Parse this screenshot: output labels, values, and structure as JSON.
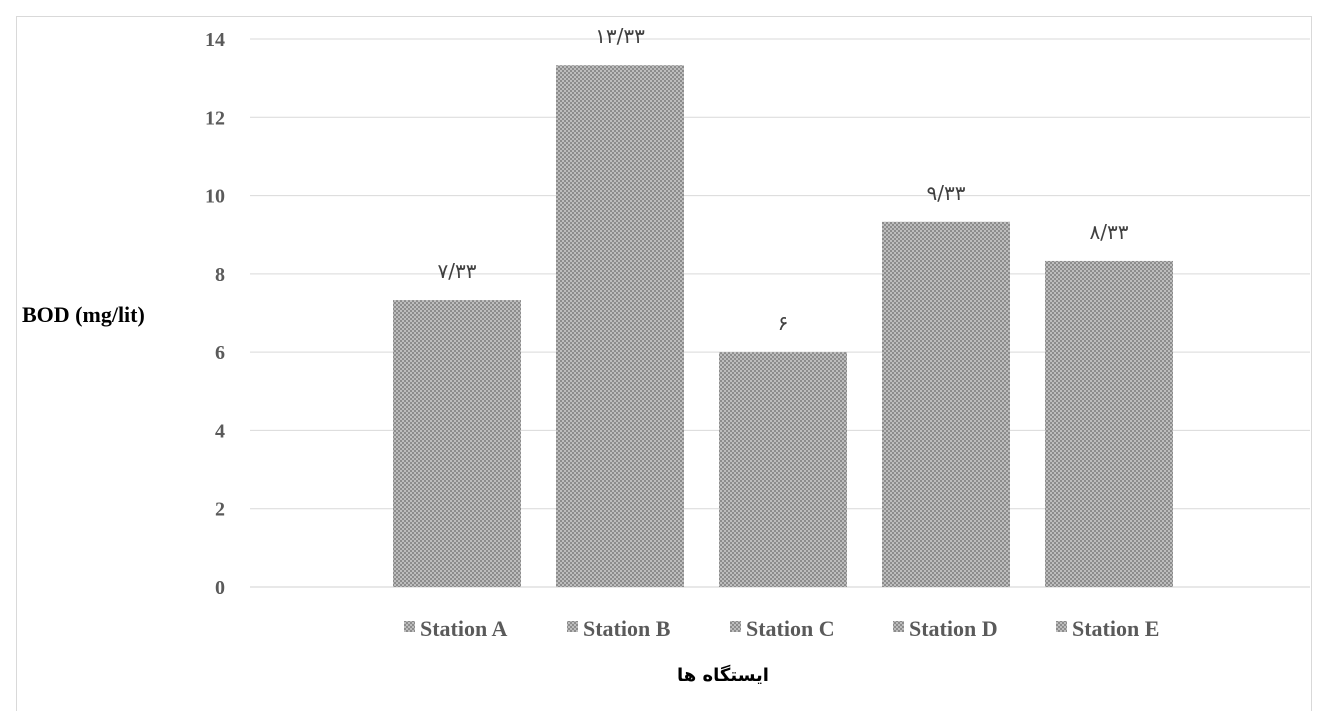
{
  "chart_data": {
    "type": "bar",
    "categories": [
      "Station A",
      "Station B",
      "Station C",
      "Station D",
      "Station E"
    ],
    "values": [
      7.33,
      13.33,
      6,
      9.33,
      8.33
    ],
    "data_labels": [
      "۷/۳۳",
      "۱۳/۳۳",
      "۶",
      "۹/۳۳",
      "۸/۳۳"
    ],
    "legend": [
      "Station A",
      "Station B",
      "Station C",
      "Station D",
      "Station E"
    ],
    "legend_position": "bottom",
    "ylabel": "BOD (mg/lit)",
    "xlabel": "ایستگاه ها",
    "ylim": [
      0,
      14
    ],
    "yticks": [
      "0",
      "2",
      "4",
      "6",
      "8",
      "10",
      "12",
      "14"
    ],
    "grid": true,
    "bar_color": "#a6a6a6",
    "pattern": "crosshatch"
  }
}
